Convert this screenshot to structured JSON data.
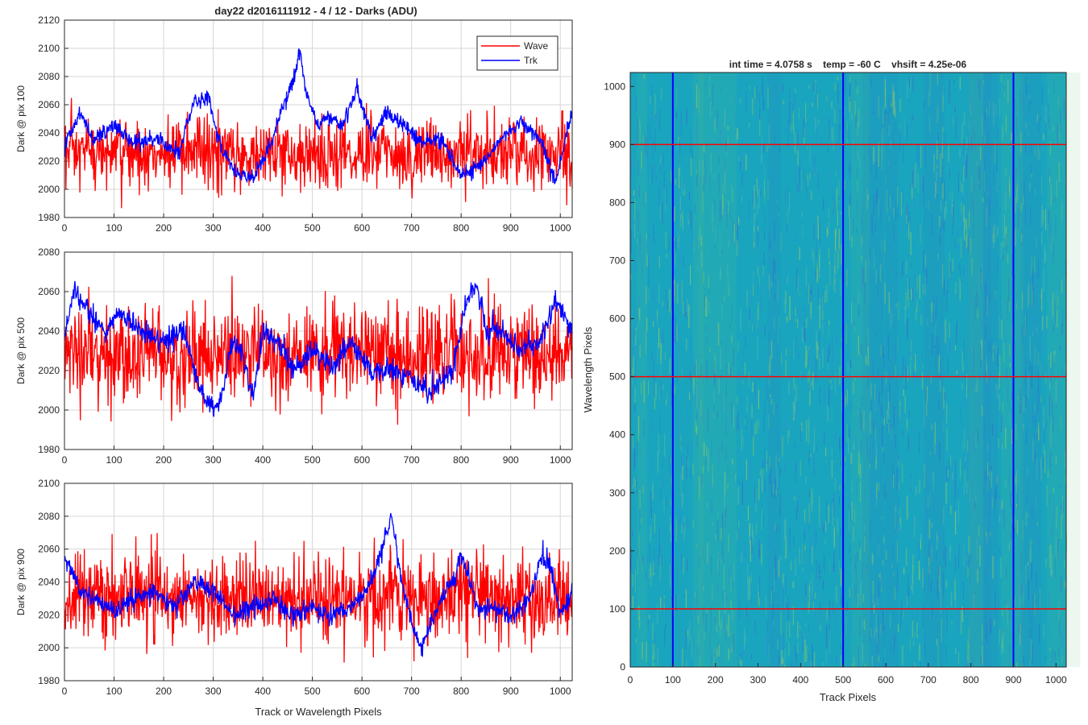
{
  "figure": {
    "title": "day22 d2016111912 - 4 / 12 - Darks (ADU)",
    "x_label": "Track or Wavelength Pixels"
  },
  "colors": {
    "wave": "#ff0000",
    "trk": "#0000ff",
    "axis": "#262626",
    "grid": "#d6d6d6",
    "image_low": "#2f74c9",
    "image_mid": "#1aa5bf",
    "image_high": "#66c27a"
  },
  "legend": {
    "wave": "Wave",
    "trk": "Trk"
  },
  "image_plot": {
    "title": "int time = 4.0758 s    temp = -60 C    vhsift = 4.25e-06",
    "xlabel": "Track Pixels",
    "ylabel": "Wavelength Pixels"
  },
  "chart_data": [
    {
      "type": "line",
      "title": "day22 d2016111912 - 4 / 12 - Darks (ADU)",
      "ylabel": "Dark @ pix 100",
      "xlabel": "",
      "xlim": [
        0,
        1024
      ],
      "ylim": [
        1980,
        2120
      ],
      "xticks": [
        0,
        100,
        200,
        300,
        400,
        500,
        600,
        700,
        800,
        900,
        1000
      ],
      "yticks": [
        1980,
        2000,
        2020,
        2040,
        2060,
        2080,
        2100,
        2120
      ],
      "grid": true,
      "legend_position": "top-right",
      "series": [
        {
          "name": "Wave",
          "color": "#ff0000",
          "mean": 2025,
          "noise": 13,
          "x": [
            0,
            1024
          ],
          "y": [
            2025,
            2025
          ]
        },
        {
          "name": "Trk",
          "color": "#0000ff",
          "noise": 3,
          "x": [
            0,
            30,
            60,
            100,
            140,
            180,
            230,
            260,
            290,
            320,
            350,
            380,
            400,
            420,
            440,
            460,
            475,
            490,
            510,
            530,
            560,
            590,
            620,
            650,
            690,
            720,
            760,
            800,
            840,
            880,
            920,
            960,
            990,
            1024
          ],
          "y": [
            2030,
            2055,
            2035,
            2045,
            2032,
            2038,
            2025,
            2060,
            2065,
            2025,
            2010,
            2008,
            2020,
            2035,
            2060,
            2075,
            2098,
            2065,
            2045,
            2052,
            2045,
            2072,
            2035,
            2055,
            2045,
            2032,
            2035,
            2010,
            2018,
            2035,
            2048,
            2035,
            2005,
            2055
          ]
        }
      ]
    },
    {
      "type": "line",
      "title": "",
      "ylabel": "Dark @ pix 500",
      "xlabel": "",
      "xlim": [
        0,
        1024
      ],
      "ylim": [
        1980,
        2080
      ],
      "xticks": [
        0,
        100,
        200,
        300,
        400,
        500,
        600,
        700,
        800,
        900,
        1000
      ],
      "yticks": [
        1980,
        2000,
        2020,
        2040,
        2060,
        2080
      ],
      "grid": true,
      "series": [
        {
          "name": "Wave",
          "color": "#ff0000",
          "mean": 2028,
          "noise": 12,
          "x": [
            0,
            1024
          ],
          "y": [
            2028,
            2028
          ]
        },
        {
          "name": "Trk",
          "color": "#0000ff",
          "noise": 3,
          "x": [
            0,
            20,
            50,
            80,
            110,
            150,
            200,
            240,
            280,
            310,
            340,
            360,
            380,
            400,
            430,
            460,
            500,
            540,
            580,
            620,
            660,
            700,
            740,
            780,
            810,
            830,
            850,
            880,
            920,
            960,
            990,
            1024
          ],
          "y": [
            2040,
            2060,
            2050,
            2040,
            2050,
            2040,
            2035,
            2040,
            2005,
            2000,
            2035,
            2030,
            2005,
            2040,
            2035,
            2020,
            2030,
            2022,
            2035,
            2018,
            2020,
            2015,
            2010,
            2020,
            2055,
            2065,
            2040,
            2040,
            2030,
            2035,
            2055,
            2040
          ]
        }
      ]
    },
    {
      "type": "line",
      "title": "",
      "ylabel": "Dark @ pix 900",
      "xlabel": "Track or Wavelength Pixels",
      "xlim": [
        0,
        1024
      ],
      "ylim": [
        1980,
        2100
      ],
      "xticks": [
        0,
        100,
        200,
        300,
        400,
        500,
        600,
        700,
        800,
        900,
        1000
      ],
      "yticks": [
        1980,
        2000,
        2020,
        2040,
        2060,
        2080,
        2100
      ],
      "grid": true,
      "series": [
        {
          "name": "Wave",
          "color": "#ff0000",
          "mean": 2030,
          "noise": 13,
          "x": [
            0,
            1024
          ],
          "y": [
            2030,
            2030
          ]
        },
        {
          "name": "Trk",
          "color": "#0000ff",
          "noise": 3,
          "x": [
            0,
            30,
            60,
            100,
            140,
            180,
            220,
            260,
            300,
            340,
            380,
            420,
            460,
            500,
            540,
            580,
            620,
            650,
            660,
            680,
            700,
            720,
            760,
            790,
            800,
            830,
            860,
            900,
            940,
            960,
            980,
            1000,
            1024
          ],
          "y": [
            2055,
            2035,
            2030,
            2022,
            2030,
            2035,
            2025,
            2040,
            2035,
            2020,
            2025,
            2030,
            2020,
            2025,
            2020,
            2025,
            2040,
            2070,
            2080,
            2040,
            2015,
            2000,
            2030,
            2045,
            2060,
            2025,
            2025,
            2020,
            2030,
            2055,
            2050,
            2020,
            2035
          ]
        }
      ]
    },
    {
      "type": "heatmap",
      "title": "int time = 4.0758 s    temp = -60 C    vhsift = 4.25e-06",
      "xlabel": "Track Pixels",
      "ylabel": "Wavelength Pixels",
      "xlim": [
        0,
        1024
      ],
      "ylim": [
        0,
        1024
      ],
      "xticks": [
        0,
        100,
        200,
        300,
        400,
        500,
        600,
        700,
        800,
        900,
        1000
      ],
      "yticks": [
        0,
        100,
        200,
        300,
        400,
        500,
        600,
        700,
        800,
        900,
        1000
      ],
      "vertical_lines": [
        100,
        500,
        900
      ],
      "horizontal_lines": [
        100,
        500,
        900
      ],
      "vertical_line_color": "#0000ff",
      "horizontal_line_color": "#ff0000"
    }
  ]
}
